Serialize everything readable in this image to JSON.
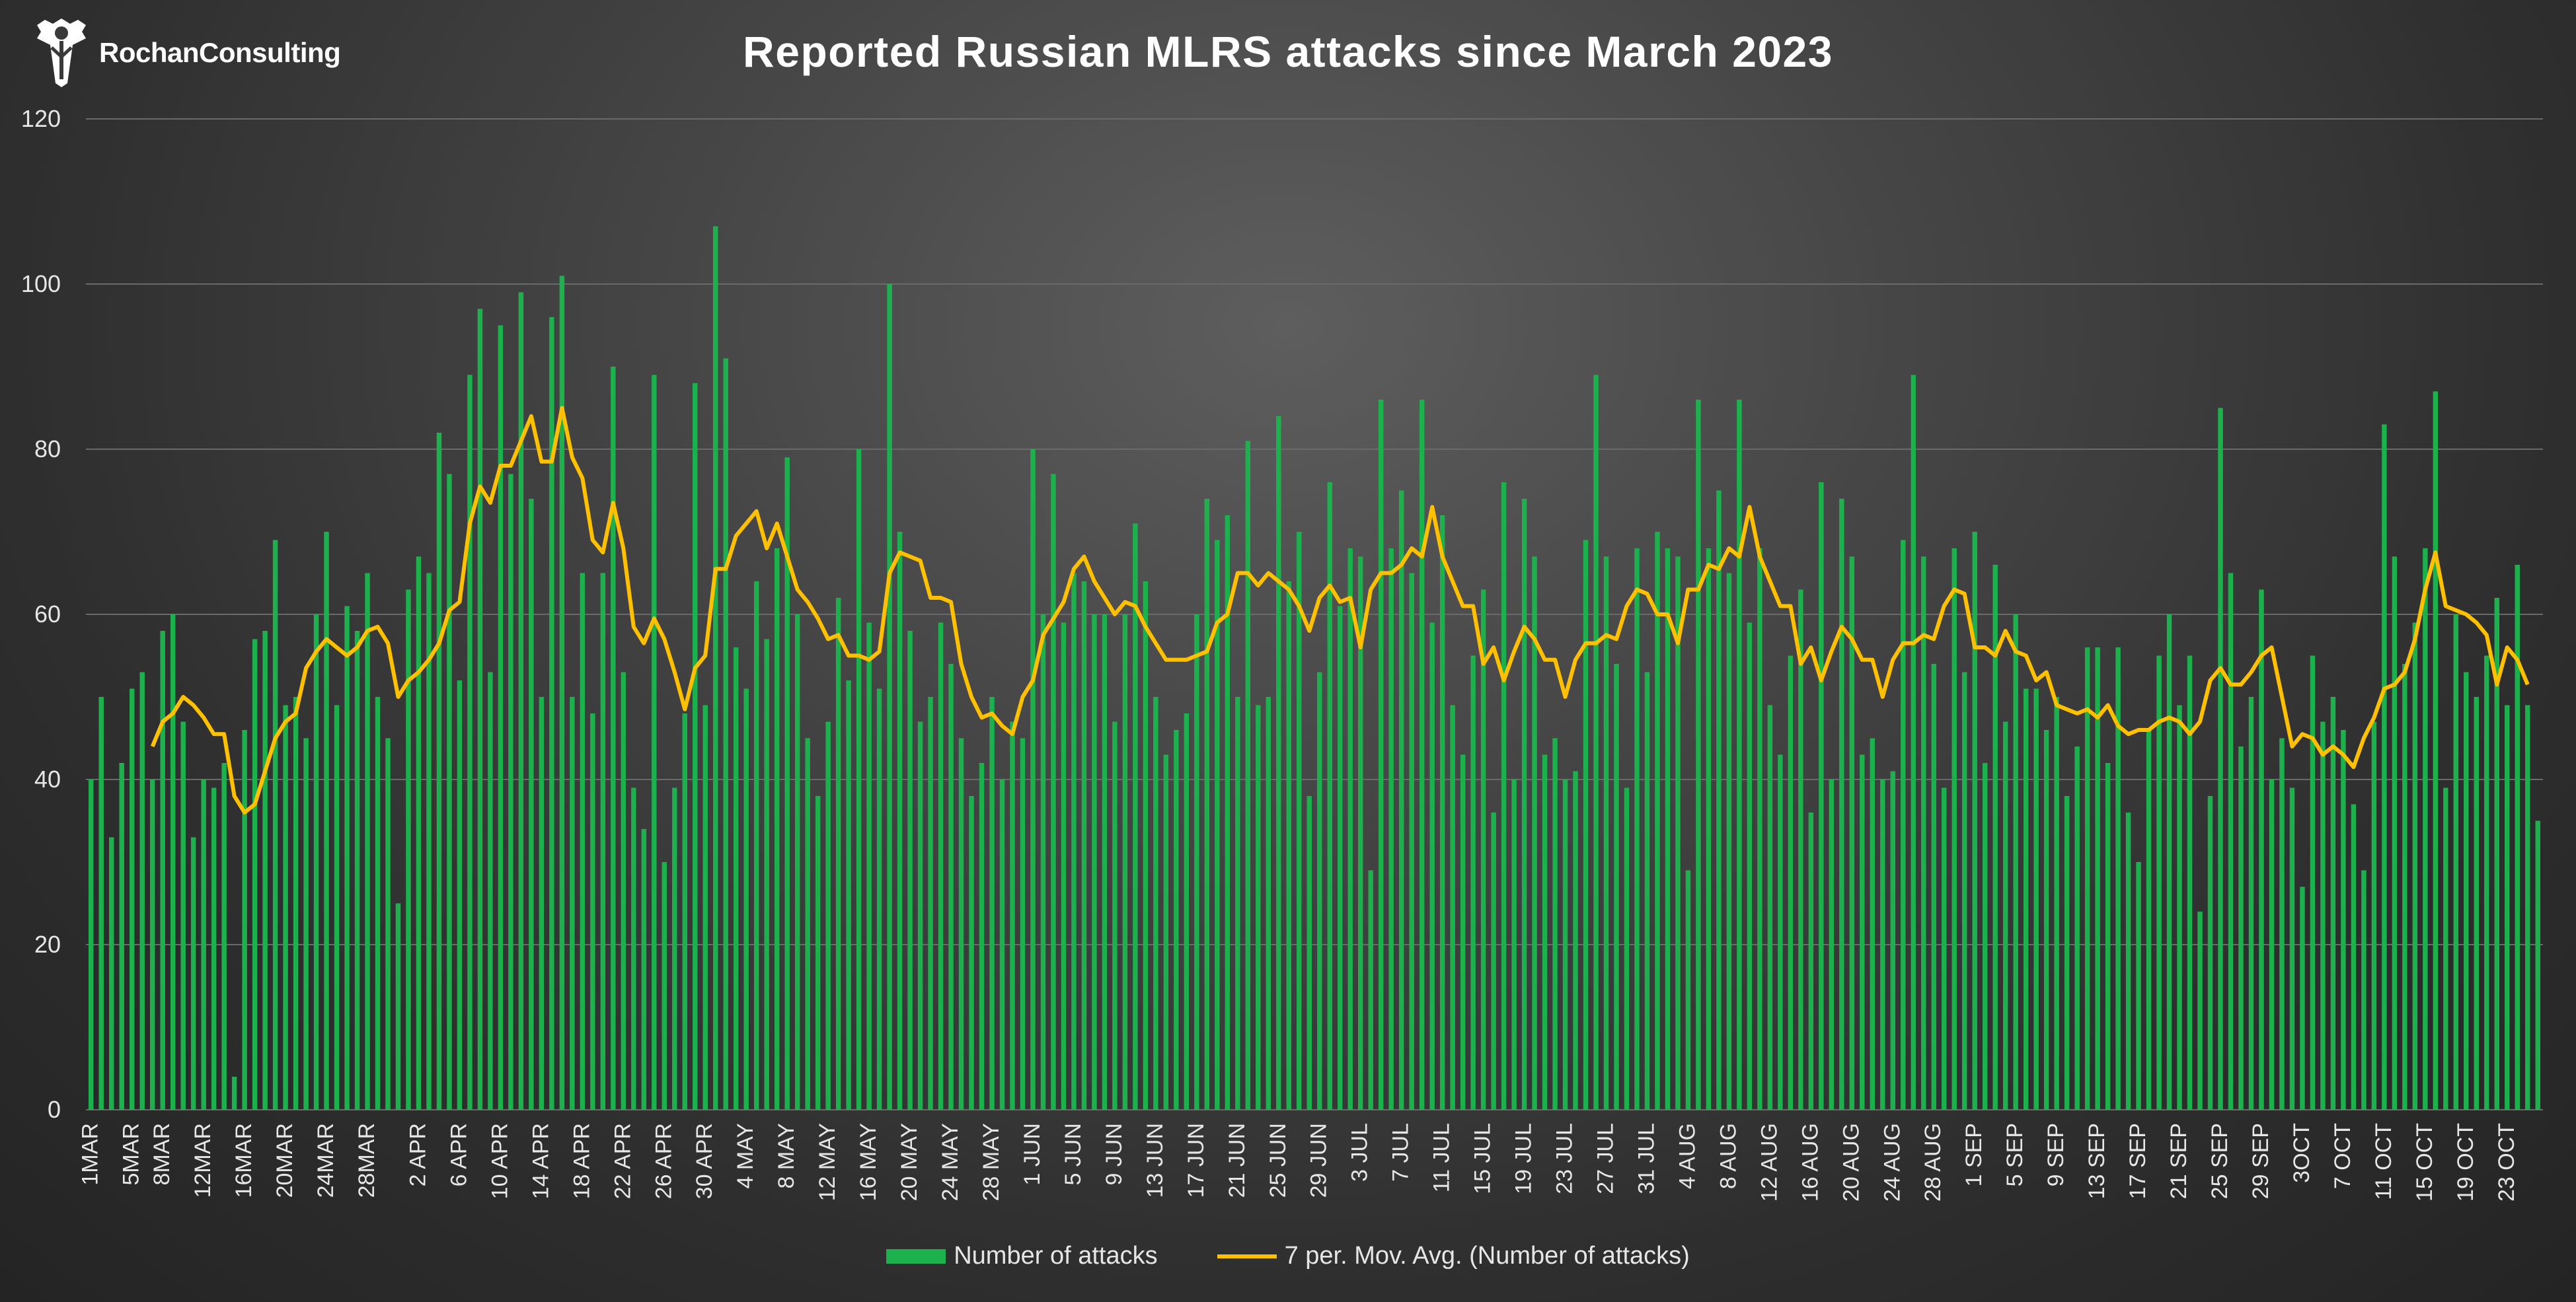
{
  "chart_data": {
    "type": "bar",
    "title": "Reported Russian MLRS attacks since March 2023",
    "xlabel": "",
    "ylabel": "",
    "ylim": [
      0,
      120
    ],
    "yticks": [
      0,
      20,
      40,
      60,
      80,
      100,
      120
    ],
    "grid": true,
    "legend_position": "bottom",
    "colors": {
      "bars": "#1db14e",
      "moving_average": "#ffc000",
      "grid": "#6a6a6a",
      "text": "#e6e6e6"
    },
    "tick_labels": [
      {
        "day": 0,
        "label": "1MAR"
      },
      {
        "day": 4,
        "label": "5MAR"
      },
      {
        "day": 7,
        "label": "8MAR"
      },
      {
        "day": 11,
        "label": "12MAR"
      },
      {
        "day": 15,
        "label": "16MAR"
      },
      {
        "day": 19,
        "label": "20MAR"
      },
      {
        "day": 23,
        "label": "24MAR"
      },
      {
        "day": 27,
        "label": "28MAR"
      },
      {
        "day": 32,
        "label": "2 APR"
      },
      {
        "day": 36,
        "label": "6 APR"
      },
      {
        "day": 40,
        "label": "10 APR"
      },
      {
        "day": 44,
        "label": "14 APR"
      },
      {
        "day": 48,
        "label": "18 APR"
      },
      {
        "day": 52,
        "label": "22 APR"
      },
      {
        "day": 56,
        "label": "26 APR"
      },
      {
        "day": 60,
        "label": "30 APR"
      },
      {
        "day": 64,
        "label": "4 MAY"
      },
      {
        "day": 68,
        "label": "8 MAY"
      },
      {
        "day": 72,
        "label": "12 MAY"
      },
      {
        "day": 76,
        "label": "16 MAY"
      },
      {
        "day": 80,
        "label": "20 MAY"
      },
      {
        "day": 84,
        "label": "24 MAY"
      },
      {
        "day": 88,
        "label": "28 MAY"
      },
      {
        "day": 92,
        "label": "1 JUN"
      },
      {
        "day": 96,
        "label": "5 JUN"
      },
      {
        "day": 100,
        "label": "9 JUN"
      },
      {
        "day": 104,
        "label": "13 JUN"
      },
      {
        "day": 108,
        "label": "17 JUN"
      },
      {
        "day": 112,
        "label": "21 JUN"
      },
      {
        "day": 116,
        "label": "25 JUN"
      },
      {
        "day": 120,
        "label": "29 JUN"
      },
      {
        "day": 124,
        "label": "3 JUL"
      },
      {
        "day": 128,
        "label": "7 JUL"
      },
      {
        "day": 132,
        "label": "11 JUL"
      },
      {
        "day": 136,
        "label": "15 JUL"
      },
      {
        "day": 140,
        "label": "19 JUL"
      },
      {
        "day": 144,
        "label": "23 JUL"
      },
      {
        "day": 148,
        "label": "27 JUL"
      },
      {
        "day": 152,
        "label": "31 JUL"
      },
      {
        "day": 156,
        "label": "4 AUG"
      },
      {
        "day": 160,
        "label": "8 AUG"
      },
      {
        "day": 164,
        "label": "12 AUG"
      },
      {
        "day": 168,
        "label": "16 AUG"
      },
      {
        "day": 172,
        "label": "20 AUG"
      },
      {
        "day": 176,
        "label": "24 AUG"
      },
      {
        "day": 180,
        "label": "28 AUG"
      },
      {
        "day": 184,
        "label": "1 SEP"
      },
      {
        "day": 188,
        "label": "5 SEP"
      },
      {
        "day": 192,
        "label": "9 SEP"
      },
      {
        "day": 196,
        "label": "13 SEP"
      },
      {
        "day": 200,
        "label": "17 SEP"
      },
      {
        "day": 204,
        "label": "21 SEP"
      },
      {
        "day": 208,
        "label": "25 SEP"
      },
      {
        "day": 212,
        "label": "29 SEP"
      },
      {
        "day": 216,
        "label": "3OCT"
      },
      {
        "day": 220,
        "label": "7 OCT"
      },
      {
        "day": 224,
        "label": "11 OCT"
      },
      {
        "day": 228,
        "label": "15 OCT"
      },
      {
        "day": 232,
        "label": "19 OCT"
      },
      {
        "day": 236,
        "label": "23 OCT"
      }
    ],
    "series": [
      {
        "name": "Number of attacks",
        "type": "bar",
        "values": [
          40,
          50,
          33,
          42,
          51,
          53,
          40,
          58,
          60,
          47,
          33,
          40,
          39,
          42,
          4,
          46,
          57,
          58,
          69,
          49,
          50,
          45,
          60,
          70,
          49,
          61,
          58,
          65,
          50,
          45,
          25,
          63,
          67,
          65,
          82,
          77,
          52,
          89,
          97,
          53,
          95,
          77,
          99,
          74,
          50,
          96,
          101,
          50,
          65,
          48,
          65,
          90,
          53,
          39,
          34,
          89,
          30,
          39,
          48,
          88,
          49,
          107,
          91,
          56,
          51,
          64,
          57,
          68,
          79,
          60,
          45,
          38,
          47,
          62,
          52,
          80,
          59,
          51,
          100,
          70,
          58,
          47,
          50,
          59,
          54,
          45,
          38,
          42,
          50,
          40,
          47,
          45,
          80,
          60,
          77,
          59,
          65,
          64,
          60,
          60,
          47,
          60,
          71,
          64,
          50,
          43,
          46,
          48,
          60,
          74,
          69,
          72,
          50,
          81,
          49,
          50,
          84,
          64,
          70,
          38,
          53,
          76,
          61,
          68,
          67,
          29,
          86,
          68,
          75,
          65,
          86,
          59,
          72,
          49,
          43,
          55,
          63,
          36,
          76,
          40,
          74,
          67,
          43,
          45,
          40,
          41,
          69,
          89,
          67,
          54,
          39,
          68,
          53,
          70,
          68,
          67,
          29,
          86,
          68,
          75,
          65,
          86,
          59,
          68,
          49,
          43,
          55,
          63,
          36,
          76,
          40,
          74,
          67,
          43,
          45,
          40,
          41,
          69,
          89,
          67,
          54,
          39,
          68,
          53,
          70,
          42,
          66,
          47,
          60,
          51,
          51,
          46,
          50,
          38,
          44,
          56,
          56,
          42,
          56,
          36,
          30,
          46,
          55,
          60,
          49,
          55,
          24,
          38,
          85,
          65,
          44,
          50,
          63,
          40,
          45,
          39,
          27,
          55,
          47,
          50,
          46,
          37,
          29,
          47,
          83,
          67,
          54,
          59,
          68,
          87,
          39,
          60,
          53,
          50,
          55,
          62,
          49,
          66,
          49,
          35
        ]
      },
      {
        "name": "7 per. Mov. Avg. (Number of attacks)",
        "type": "line",
        "start_index": 6,
        "values": [
          44,
          47,
          48,
          50,
          49,
          47.5,
          45.5,
          45.5,
          38,
          36,
          37,
          41,
          45,
          47,
          48,
          53.5,
          55.5,
          57,
          56,
          55,
          56,
          58,
          58.5,
          56.5,
          50,
          52,
          53,
          54.5,
          56.5,
          60.5,
          61.5,
          71,
          75.5,
          73.5,
          78,
          78,
          81,
          84,
          78.5,
          78.5,
          85,
          79,
          76.5,
          69,
          67.5,
          73.5,
          68,
          58.5,
          56.5,
          59.5,
          57,
          53,
          48.5,
          53.5,
          55,
          65.5,
          65.5,
          69.5,
          71,
          72.5,
          68,
          71,
          67,
          63,
          61.5,
          59.5,
          57,
          57.5,
          55,
          55,
          54.5,
          55.5,
          65,
          67.5,
          67,
          66.5,
          62,
          62,
          61.5,
          54,
          50,
          47.5,
          48,
          46.5,
          45.5,
          50,
          52,
          57.5,
          59.5,
          61.5,
          65.5,
          67,
          64,
          62,
          60,
          61.5,
          61,
          58.5,
          56.5,
          54.5,
          54.5,
          54.5,
          55,
          55.5,
          59,
          60,
          65,
          65,
          63.5,
          65,
          64,
          63,
          61,
          58,
          62,
          63.5,
          61.5,
          62,
          56,
          63,
          65,
          65,
          66,
          68,
          67,
          73,
          67,
          64,
          61,
          61,
          54,
          56,
          52,
          55.5,
          58.5,
          57,
          54.5,
          54.5,
          50,
          54.5,
          56.5,
          56.5,
          57.5,
          57,
          61,
          63,
          62.5,
          60,
          60,
          56.5,
          63,
          63,
          66,
          65.5,
          68,
          67,
          73,
          67,
          64,
          61,
          61,
          54,
          56,
          52,
          55.5,
          58.5,
          57,
          54.5,
          54.5,
          50,
          54.5,
          56.5,
          56.5,
          57.5,
          57,
          61,
          63,
          62.5,
          56,
          56,
          55,
          58,
          55.5,
          55,
          52,
          53,
          49,
          48.5,
          48,
          48.5,
          47.5,
          49,
          46.5,
          45.5,
          46,
          46,
          47,
          47.5,
          47,
          45.5,
          47,
          52,
          53.5,
          51.5,
          51.5,
          53,
          55,
          56,
          50,
          44,
          45.5,
          45,
          43,
          44,
          43,
          41.5,
          45,
          47.5,
          51,
          51.5,
          53,
          57,
          63,
          67.5,
          61,
          60.5,
          60,
          59,
          57.5,
          51.5,
          56,
          54.5,
          51.5
        ]
      }
    ]
  },
  "branding": {
    "logo_text": "RochanConsulting"
  },
  "legend": {
    "bar_label": "Number of attacks",
    "line_label": "7 per. Mov. Avg. (Number of attacks)"
  }
}
